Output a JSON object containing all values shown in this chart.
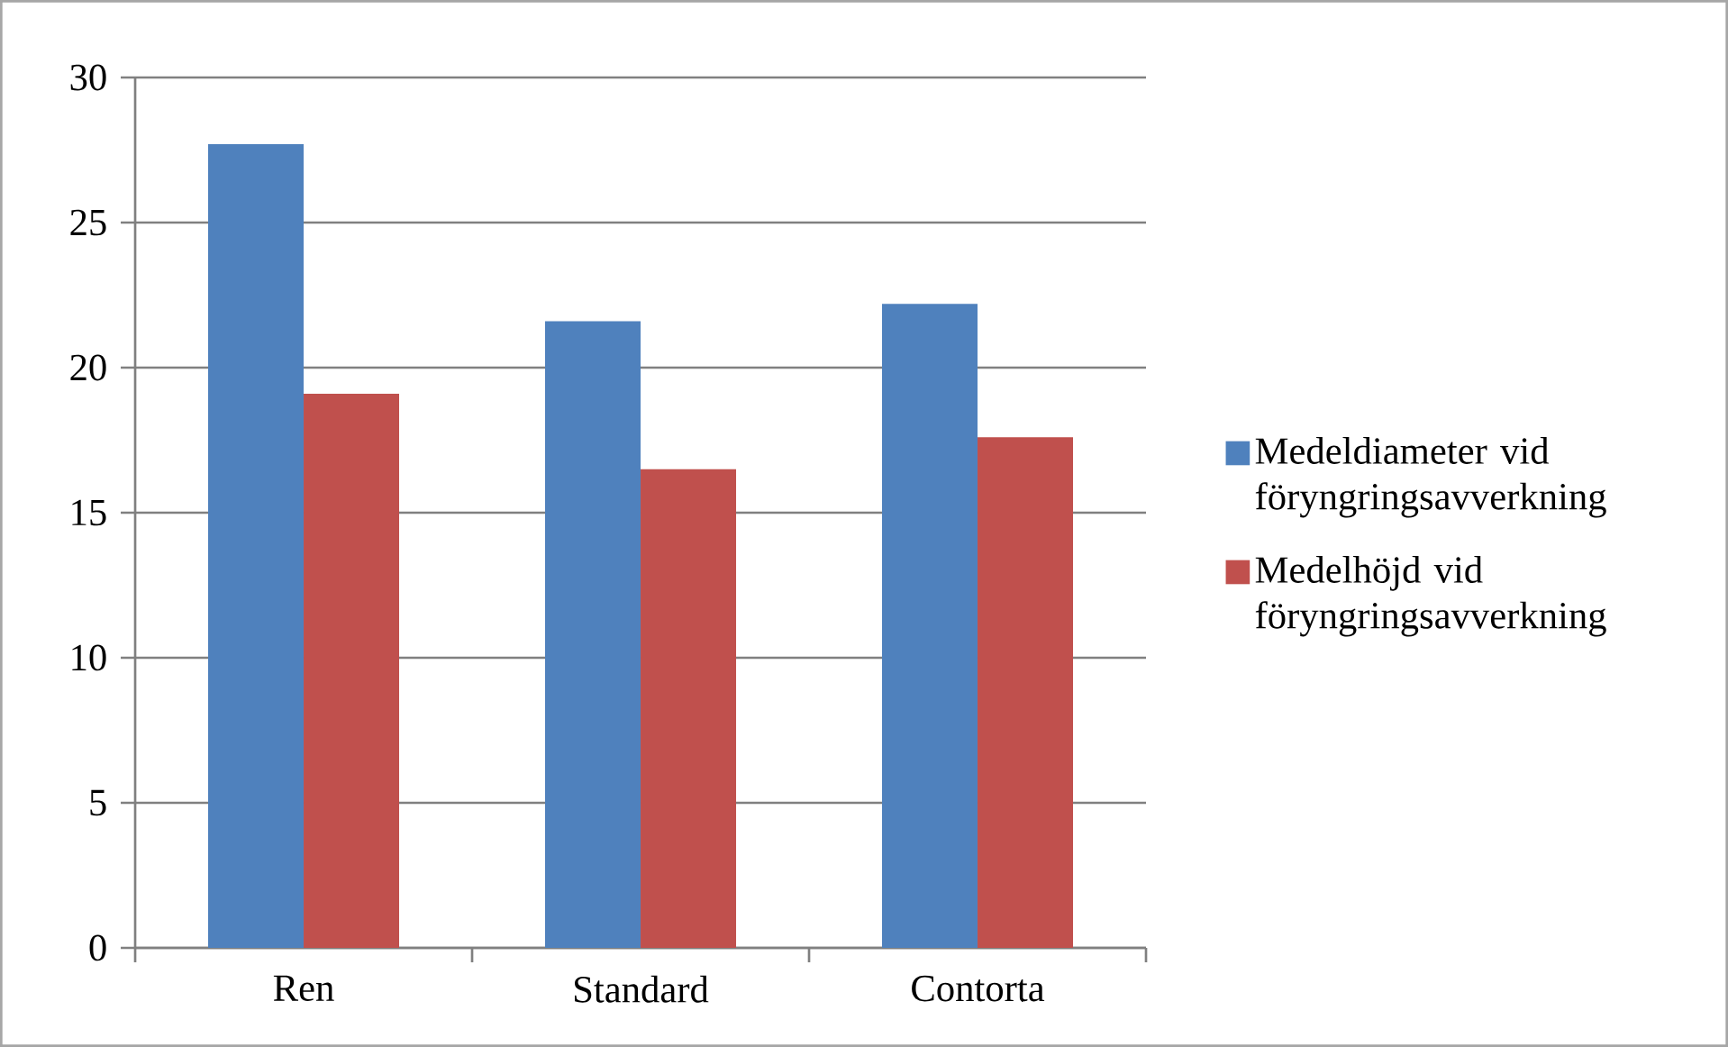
{
  "chart_data": {
    "type": "bar",
    "categories": [
      "Ren",
      "Standard",
      "Contorta"
    ],
    "series": [
      {
        "name": "Medeldiameter vid föryngringsavverkning",
        "color": "#4f81bd",
        "values": [
          27.7,
          21.6,
          22.2
        ]
      },
      {
        "name": "Medelhöjd vid föryngringsavverkning",
        "color": "#c0504d",
        "values": [
          19.1,
          16.5,
          17.6
        ]
      }
    ],
    "ylim": [
      0,
      30
    ],
    "yticks": [
      0,
      5,
      10,
      15,
      20,
      25,
      30
    ],
    "grid": "y",
    "legend": "right"
  }
}
